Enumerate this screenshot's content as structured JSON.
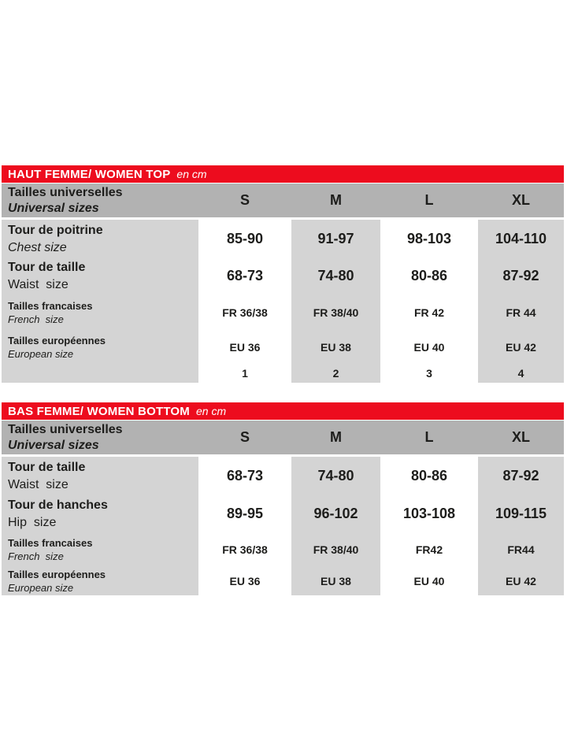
{
  "colors": {
    "accent_red": "#ed0c1e",
    "header_gray": "#b2b2b2",
    "cell_gray": "#d4d4d4",
    "text": "#1d1d1b",
    "background": "#ffffff"
  },
  "tables": [
    {
      "title": "HAUT FEMME/ WOMEN TOP",
      "unit": "en cm",
      "header": {
        "label_line1": "Tailles universelles",
        "label_line2": "Universal sizes",
        "columns": [
          "S",
          "M",
          "L",
          "XL"
        ]
      },
      "rows": [
        {
          "label": "Tour de poitrine",
          "sublabel": "Chest size",
          "values": [
            "85-90",
            "91-97",
            "98-103",
            "104-110"
          ]
        },
        {
          "label": "Tour de taille",
          "sublabel": "Waist  size",
          "values": [
            "68-73",
            "74-80",
            "80-86",
            "87-92"
          ]
        },
        {
          "label": "Tailles francaises",
          "sublabel": "French  size",
          "values": [
            "FR 36/38",
            "FR 38/40",
            "FR 42",
            "FR 44"
          ]
        },
        {
          "label": "Tailles européennes",
          "sublabel": "European size",
          "values": [
            "EU 36",
            "EU 38",
            "EU 40",
            "EU 42"
          ]
        },
        {
          "label": "",
          "sublabel": "",
          "values": [
            "1",
            "2",
            "3",
            "4"
          ]
        }
      ]
    },
    {
      "title": "BAS FEMME/ WOMEN BOTTOM",
      "unit": "en cm",
      "header": {
        "label_line1": "Tailles universelles",
        "label_line2": "Universal sizes",
        "columns": [
          "S",
          "M",
          "L",
          "XL"
        ]
      },
      "rows": [
        {
          "label": "Tour de taille",
          "sublabel": "Waist  size",
          "values": [
            "68-73",
            "74-80",
            "80-86",
            "87-92"
          ]
        },
        {
          "label": "Tour de hanches",
          "sublabel": "Hip  size",
          "values": [
            "89-95",
            "96-102",
            "103-108",
            "109-115"
          ]
        },
        {
          "label": "Tailles francaises",
          "sublabel": "French  size",
          "values": [
            "FR 36/38",
            "FR 38/40",
            "FR42",
            "FR44"
          ]
        },
        {
          "label": "Tailles européennes",
          "sublabel": "European size",
          "values": [
            "EU 36",
            "EU 38",
            "EU 40",
            "EU 42"
          ]
        }
      ]
    }
  ]
}
